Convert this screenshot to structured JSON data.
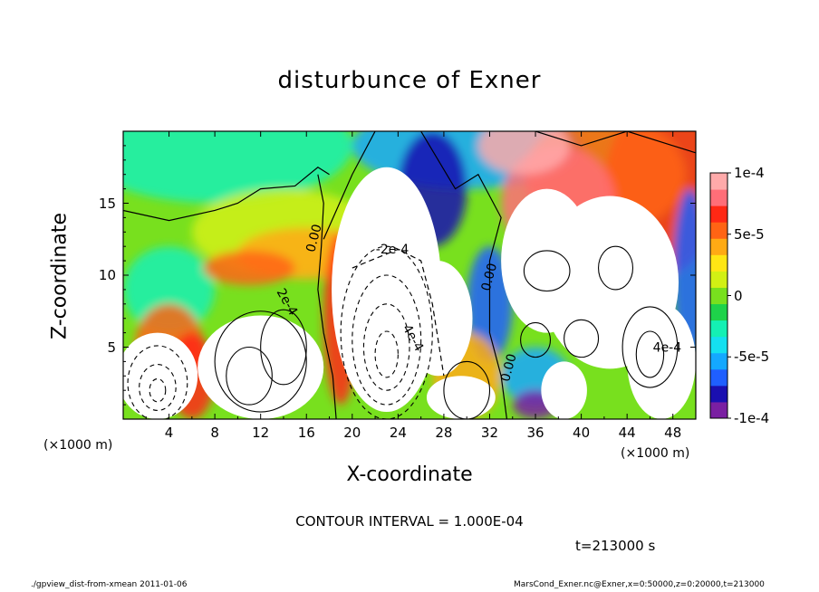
{
  "chart_data": {
    "type": "heatmap",
    "title": "disturbunce of Exner",
    "xlabel": "X-coordinate",
    "ylabel": "Z-coordinate",
    "x_unit": "(×1000 m)",
    "y_unit": "(×1000 m)",
    "xlim": [
      0,
      50
    ],
    "ylim": [
      0,
      20
    ],
    "x_ticks": [
      4,
      8,
      12,
      16,
      20,
      24,
      28,
      32,
      36,
      40,
      44,
      48
    ],
    "y_ticks": [
      5,
      10,
      15
    ],
    "colorbar": {
      "range": [
        -0.0001,
        0.0001
      ],
      "ticks": [
        "1e-4",
        "5e-5",
        "0",
        "-5e-5",
        "-1e-4"
      ],
      "tick_values": [
        0.0001,
        5e-05,
        0,
        -5e-05,
        -0.0001
      ],
      "colors": [
        "#7a1fa2",
        "#1a0fb0",
        "#1f5fff",
        "#14a8ff",
        "#14e0f0",
        "#14f0b4",
        "#1ed24a",
        "#78e01e",
        "#d2f014",
        "#ffe614",
        "#ffaa14",
        "#ff6414",
        "#ff2814",
        "#ff6e78",
        "#ffaaaa"
      ]
    },
    "contour_labels": [
      "0.00",
      "-2e-4",
      "2e-4",
      "4e-4",
      "0.00",
      "0.00",
      "4e-4"
    ],
    "contour_interval_text": "CONTOUR INTERVAL = 1.000E-04",
    "time_text": "t=213000 s"
  },
  "footer": {
    "left": "./gpview_dist-from-xmean  2011-01-06",
    "right": "MarsCond_Exner.nc@Exner,x=0:50000,z=0:20000,t=213000"
  }
}
